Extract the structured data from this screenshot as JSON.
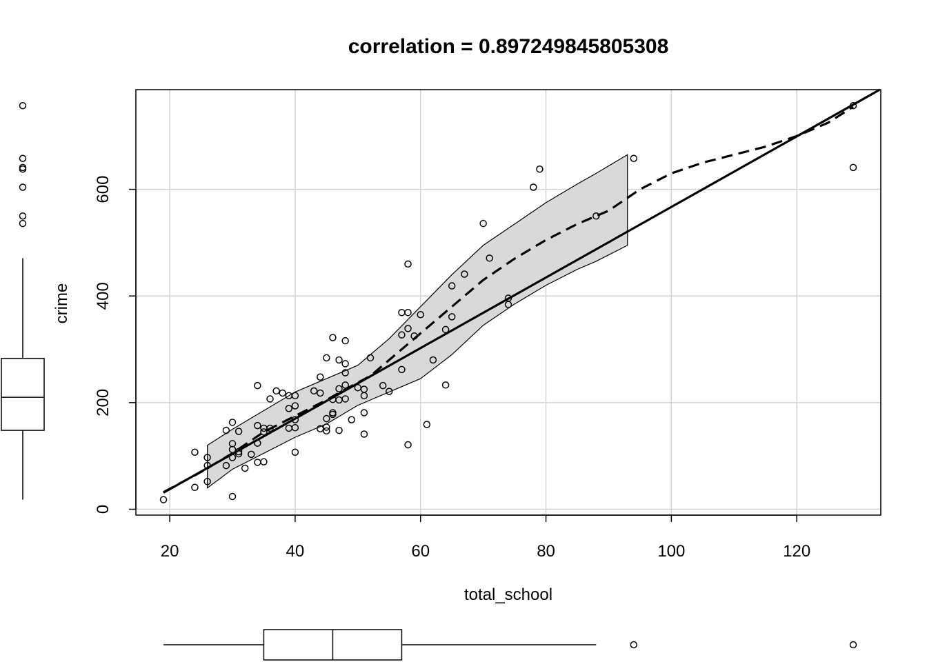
{
  "chart_data": {
    "type": "scatter",
    "title": "correlation =  0.897249845805308",
    "xlabel": "total_school",
    "ylabel": "crime",
    "xlim": [
      14.6,
      133.4
    ],
    "ylim": [
      -11,
      787
    ],
    "xticks": [
      "20",
      "40",
      "60",
      "80",
      "100",
      "120"
    ],
    "yticks": [
      "0",
      "200",
      "400",
      "600"
    ],
    "grid": true,
    "points": [
      [
        19,
        18
      ],
      [
        24,
        41
      ],
      [
        24,
        107
      ],
      [
        26,
        52
      ],
      [
        26,
        82
      ],
      [
        26,
        97
      ],
      [
        29,
        82
      ],
      [
        29,
        148
      ],
      [
        30,
        24
      ],
      [
        30,
        97
      ],
      [
        30,
        112
      ],
      [
        30,
        123
      ],
      [
        30,
        163
      ],
      [
        31,
        104
      ],
      [
        31,
        108
      ],
      [
        31,
        146
      ],
      [
        32,
        77
      ],
      [
        33,
        103
      ],
      [
        34,
        88
      ],
      [
        34,
        124
      ],
      [
        34,
        157
      ],
      [
        34,
        232
      ],
      [
        35,
        89
      ],
      [
        35,
        145
      ],
      [
        35,
        152
      ],
      [
        36,
        152
      ],
      [
        36,
        207
      ],
      [
        37,
        222
      ],
      [
        38,
        218
      ],
      [
        39,
        152
      ],
      [
        39,
        189
      ],
      [
        39,
        213
      ],
      [
        40,
        107
      ],
      [
        40,
        153
      ],
      [
        40,
        168
      ],
      [
        40,
        194
      ],
      [
        40,
        213
      ],
      [
        43,
        222
      ],
      [
        44,
        151
      ],
      [
        44,
        218
      ],
      [
        44,
        248
      ],
      [
        45,
        147
      ],
      [
        45,
        154
      ],
      [
        45,
        170
      ],
      [
        45,
        284
      ],
      [
        46,
        178
      ],
      [
        46,
        181
      ],
      [
        46,
        206
      ],
      [
        46,
        322
      ],
      [
        47,
        148
      ],
      [
        47,
        205
      ],
      [
        47,
        226
      ],
      [
        47,
        280
      ],
      [
        48,
        207
      ],
      [
        48,
        233
      ],
      [
        48,
        256
      ],
      [
        48,
        273
      ],
      [
        48,
        316
      ],
      [
        49,
        168
      ],
      [
        50,
        228
      ],
      [
        51,
        141
      ],
      [
        51,
        181
      ],
      [
        51,
        213
      ],
      [
        51,
        225
      ],
      [
        52,
        284
      ],
      [
        54,
        232
      ],
      [
        55,
        221
      ],
      [
        57,
        262
      ],
      [
        57,
        327
      ],
      [
        57,
        369
      ],
      [
        58,
        121
      ],
      [
        58,
        339
      ],
      [
        58,
        369
      ],
      [
        58,
        460
      ],
      [
        59,
        325
      ],
      [
        60,
        365
      ],
      [
        61,
        159
      ],
      [
        62,
        280
      ],
      [
        64,
        233
      ],
      [
        64,
        337
      ],
      [
        65,
        361
      ],
      [
        65,
        419
      ],
      [
        67,
        441
      ],
      [
        70,
        536
      ],
      [
        71,
        471
      ],
      [
        74,
        384
      ],
      [
        74,
        396
      ],
      [
        78,
        604
      ],
      [
        79,
        638
      ],
      [
        88,
        550
      ],
      [
        94,
        658
      ],
      [
        129,
        641
      ],
      [
        129,
        757
      ]
    ],
    "regression_line": {
      "style": "solid",
      "x": [
        19,
        133.4
      ],
      "y": [
        31,
        788
      ]
    },
    "smooth_line": {
      "style": "dashed",
      "x": [
        19,
        25,
        30,
        35,
        40,
        45,
        48,
        52,
        56,
        60,
        65,
        70,
        75,
        80,
        85,
        90,
        95,
        100,
        105,
        110,
        115,
        120,
        125,
        129
      ],
      "y": [
        32,
        70,
        105,
        145,
        175,
        205,
        225,
        250,
        290,
        330,
        380,
        430,
        470,
        505,
        535,
        560,
        600,
        630,
        650,
        665,
        680,
        700,
        725,
        755
      ]
    },
    "confidence_band": {
      "x": [
        26,
        30,
        35,
        40,
        45,
        50,
        55,
        60,
        65,
        70,
        75,
        80,
        85,
        88,
        93
      ],
      "upper": [
        120,
        150,
        185,
        220,
        245,
        270,
        320,
        380,
        440,
        495,
        535,
        575,
        610,
        630,
        665
      ],
      "lower": [
        40,
        75,
        105,
        135,
        160,
        195,
        220,
        245,
        290,
        345,
        385,
        420,
        450,
        465,
        495
      ]
    },
    "x_boxplot": {
      "min": 19,
      "q1": 35,
      "median": 46,
      "q3": 57,
      "whisker_high": 88,
      "outliers": [
        94,
        129
      ]
    },
    "y_boxplot": {
      "min": 18,
      "q1": 148,
      "median": 210,
      "q3": 283,
      "whisker_high": 471,
      "outliers": [
        536,
        550,
        604,
        638,
        641,
        658,
        757
      ]
    }
  }
}
